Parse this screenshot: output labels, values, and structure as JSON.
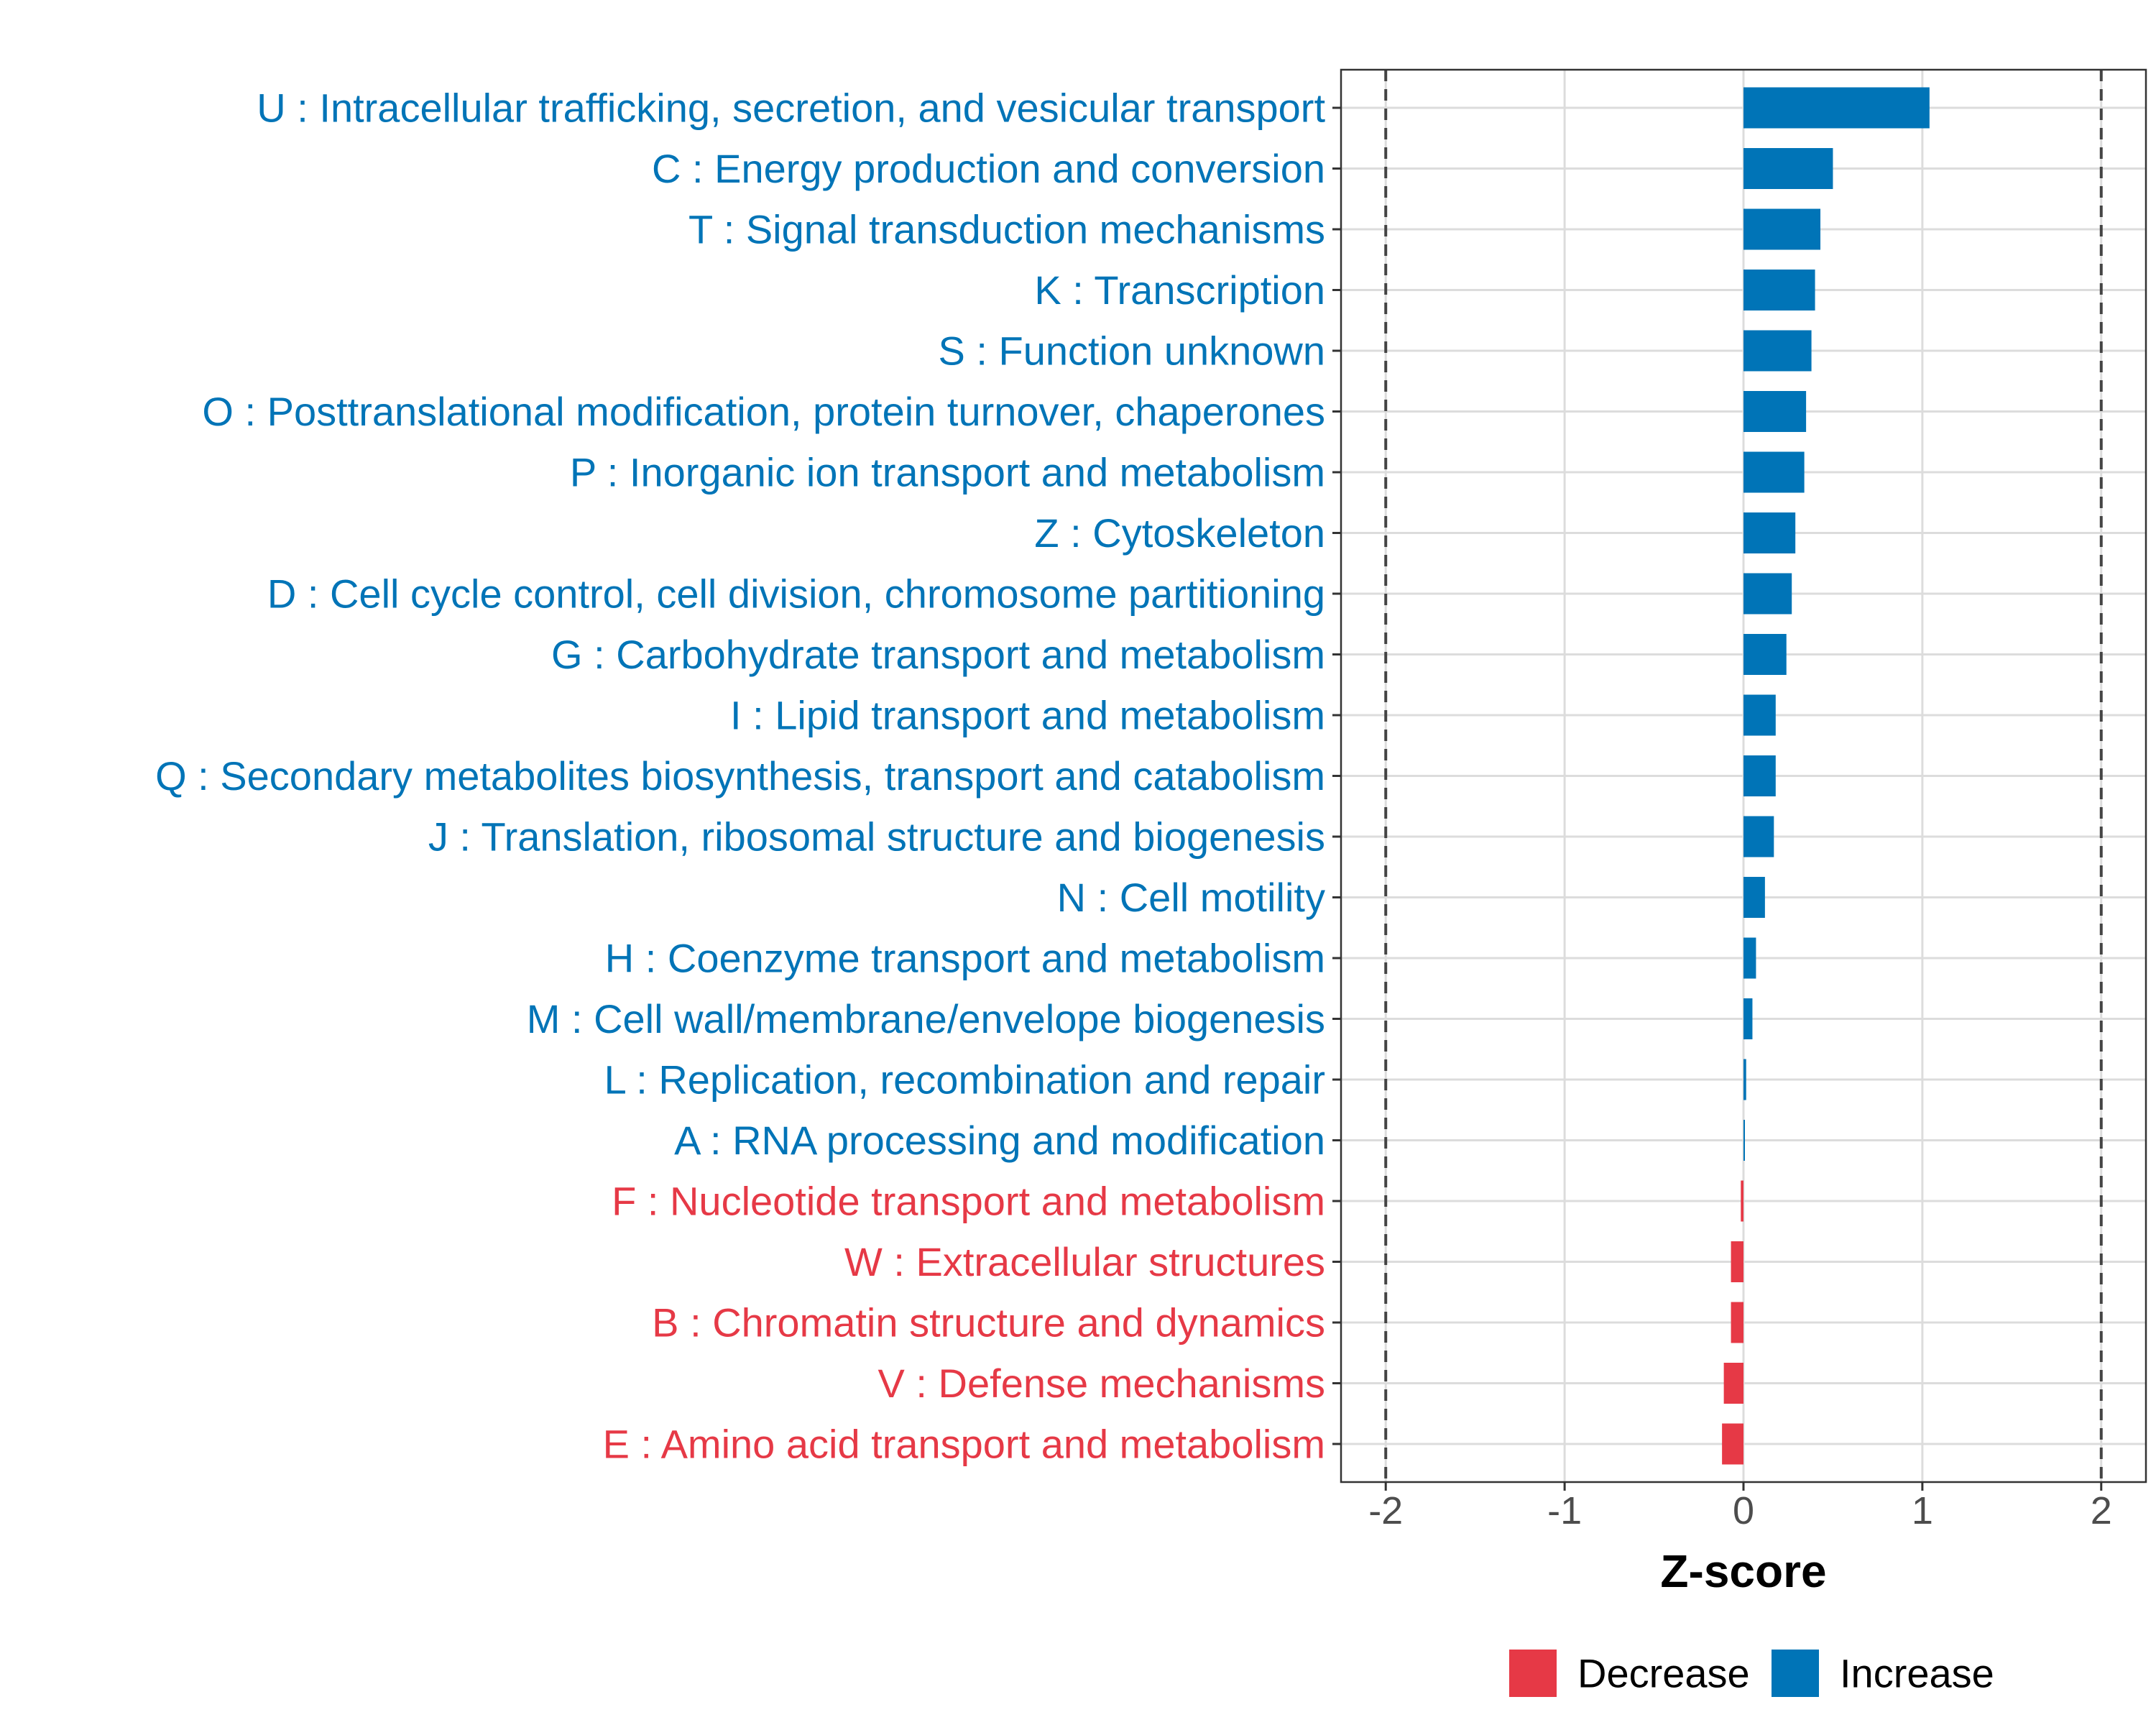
{
  "chart_data": {
    "type": "bar",
    "orientation": "horizontal",
    "xlabel": "Z-score",
    "xlim": [
      -2.25,
      2.25
    ],
    "xticks": [
      -2,
      -1,
      0,
      1,
      2
    ],
    "xtick_labels": [
      "-2",
      "-1",
      "0",
      "1",
      "2"
    ],
    "reference_lines": [
      -2,
      2
    ],
    "grid": true,
    "legend": {
      "placement": "bottom",
      "items": [
        {
          "name": "Decrease",
          "color": "#e63946"
        },
        {
          "name": "Increase",
          "color": "#0074b7"
        }
      ]
    },
    "categories": [
      "U : Intracellular trafficking, secretion, and vesicular transport",
      "C : Energy production and conversion",
      "T : Signal transduction mechanisms",
      "K : Transcription",
      "S : Function unknown",
      "O : Posttranslational modification, protein turnover, chaperones",
      "P : Inorganic ion transport and metabolism",
      "Z : Cytoskeleton",
      "D : Cell cycle control, cell division, chromosome partitioning",
      "G : Carbohydrate transport and metabolism",
      "I : Lipid transport and metabolism",
      "Q : Secondary metabolites biosynthesis, transport and catabolism",
      "J : Translation, ribosomal structure and biogenesis",
      "N : Cell motility",
      "H : Coenzyme transport and metabolism",
      "M : Cell wall/membrane/envelope biogenesis",
      "L : Replication, recombination and repair",
      "A : RNA processing and modification",
      "F : Nucleotide transport and metabolism",
      "W : Extracellular structures",
      "B : Chromatin structure and dynamics",
      "V : Defense mechanisms",
      "E : Amino acid transport and metabolism"
    ],
    "values": [
      1.04,
      0.5,
      0.43,
      0.4,
      0.38,
      0.35,
      0.34,
      0.29,
      0.27,
      0.24,
      0.18,
      0.18,
      0.17,
      0.12,
      0.07,
      0.05,
      0.015,
      0.005,
      -0.015,
      -0.07,
      -0.07,
      -0.11,
      -0.12
    ],
    "series": [
      {
        "name": "Decrease",
        "color": "#e63946"
      },
      {
        "name": "Increase",
        "color": "#0074b7"
      }
    ]
  }
}
